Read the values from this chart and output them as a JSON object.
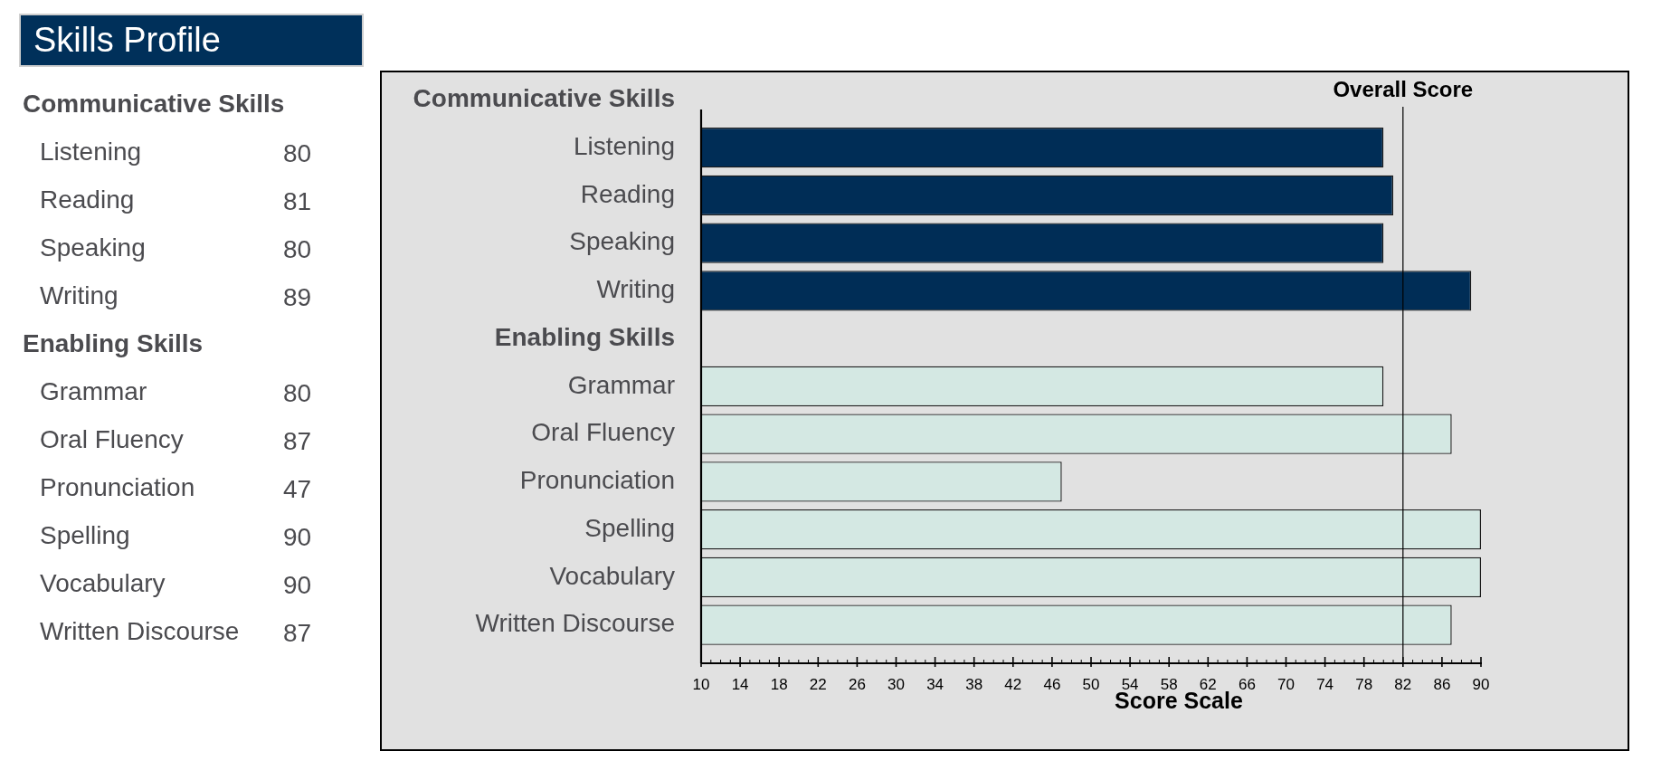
{
  "chart_data": {
    "type": "bar",
    "orientation": "horizontal",
    "title": "Skills Profile",
    "xlabel": "Score Scale",
    "categories": [
      "Communicative Skills",
      "Listening",
      "Reading",
      "Speaking",
      "Writing",
      "Enabling Skills",
      "Grammar",
      "Oral Fluency",
      "Pronunciation",
      "Spelling",
      "Vocabulary",
      "Written Discourse"
    ],
    "values": [
      null,
      80,
      81,
      80,
      89,
      null,
      80,
      87,
      47,
      90,
      90,
      87
    ],
    "colors": [
      null,
      "#002d56",
      "#002d56",
      "#002d56",
      "#002d56",
      null,
      "#d4e8e3",
      "#d4e8e3",
      "#d4e8e3",
      "#d4e8e3",
      "#d4e8e3",
      "#d4e8e3"
    ],
    "xlim": [
      10,
      90
    ],
    "xticks": [
      10,
      {
        "value": 11,
        "label": null
      },
      {
        "value": 12,
        "label": null
      },
      {
        "value": 13,
        "label": null
      },
      14,
      {
        "value": 15,
        "label": null
      },
      {
        "value": 16,
        "label": null
      },
      {
        "value": 17,
        "label": null
      },
      18,
      {
        "value": 19,
        "label": null
      },
      {
        "value": 20,
        "label": null
      },
      {
        "value": 21,
        "label": null
      },
      22,
      {
        "value": 23,
        "label": null
      },
      {
        "value": 24,
        "label": null
      },
      {
        "value": 25,
        "label": null
      },
      26,
      {
        "value": 27,
        "label": null
      },
      {
        "value": 28,
        "label": null
      },
      {
        "value": 29,
        "label": null
      },
      30,
      {
        "value": 31,
        "label": null
      },
      {
        "value": 32,
        "label": null
      },
      {
        "value": 33,
        "label": null
      },
      34,
      {
        "value": 35,
        "label": null
      },
      {
        "value": 36,
        "label": null
      },
      {
        "value": 37,
        "label": null
      },
      38,
      {
        "value": 39,
        "label": null
      },
      {
        "value": 40,
        "label": null
      },
      {
        "value": 41,
        "label": null
      },
      42,
      {
        "value": 43,
        "label": null
      },
      {
        "value": 44,
        "label": null
      },
      {
        "value": 45,
        "label": null
      },
      46,
      {
        "value": 47,
        "label": null
      },
      {
        "value": 48,
        "label": null
      },
      {
        "value": 49,
        "label": null
      },
      50,
      {
        "value": 51,
        "label": null
      },
      {
        "value": 52,
        "label": null
      },
      {
        "value": 53,
        "label": null
      },
      54,
      {
        "value": 55,
        "label": null
      },
      {
        "value": 56,
        "label": null
      },
      {
        "value": 57,
        "label": null
      },
      58,
      {
        "value": 59,
        "label": null
      },
      {
        "value": 60,
        "label": null
      },
      {
        "value": 61,
        "label": null
      },
      62,
      {
        "value": 63,
        "label": null
      },
      {
        "value": 64,
        "label": null
      },
      {
        "value": 65,
        "label": null
      },
      66,
      {
        "value": 67,
        "label": null
      },
      {
        "value": 68,
        "label": null
      },
      {
        "value": 69,
        "label": null
      },
      70,
      {
        "value": 71,
        "label": null
      },
      {
        "value": 72,
        "label": null
      },
      {
        "value": 73,
        "label": null
      },
      74,
      {
        "value": 75,
        "label": null
      },
      {
        "value": 76,
        "label": null
      },
      {
        "value": 77,
        "label": null
      },
      78,
      {
        "value": 79,
        "label": null
      },
      {
        "value": 80,
        "label": null
      },
      {
        "value": 81,
        "label": null
      },
      82,
      {
        "value": 83,
        "label": null
      },
      {
        "value": 84,
        "label": null
      },
      {
        "value": 85,
        "label": null
      },
      86,
      {
        "value": 87,
        "label": null
      },
      {
        "value": 88,
        "label": null
      },
      {
        "value": 89,
        "label": null
      },
      90
    ],
    "ref_lines": [
      {
        "axis": "x",
        "value": 82,
        "label": "Overall Score",
        "color": "#000000"
      }
    ],
    "data_labels": true,
    "grid": false,
    "legend": false
  }
}
